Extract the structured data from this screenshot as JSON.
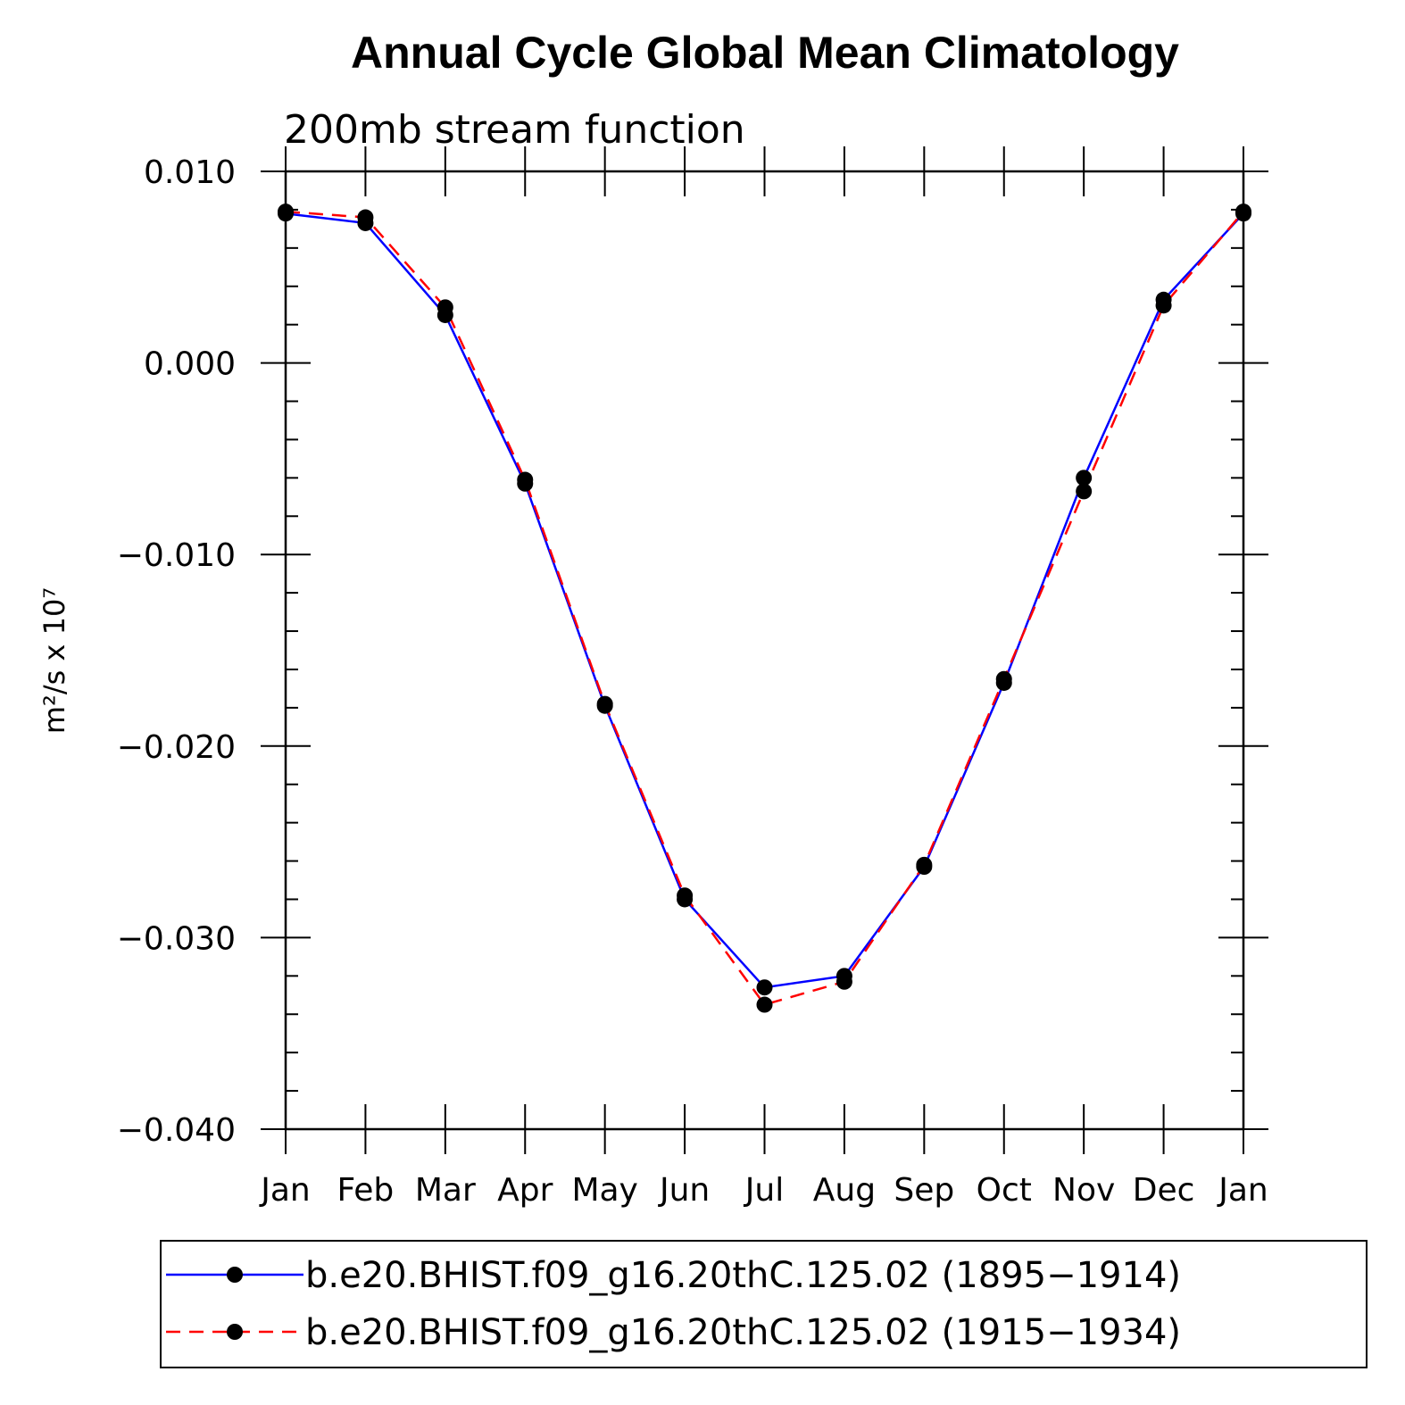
{
  "chart_data": {
    "type": "line",
    "title": "Annual Cycle Global Mean Climatology",
    "subtitle": "200mb stream function",
    "ylabel": "m²/s x 10⁷",
    "xlabel": "",
    "categories": [
      "Jan",
      "Feb",
      "Mar",
      "Apr",
      "May",
      "Jun",
      "Jul",
      "Aug",
      "Sep",
      "Oct",
      "Nov",
      "Dec",
      "Jan"
    ],
    "ylim": [
      -0.04,
      0.01
    ],
    "yticks": [
      0.01,
      0.0,
      -0.01,
      -0.02,
      -0.03,
      -0.04
    ],
    "ytick_labels": [
      "0.010",
      "0.000",
      "−0.010",
      "−0.020",
      "−0.030",
      "−0.040"
    ],
    "grid": false,
    "legend_position": "bottom",
    "series": [
      {
        "name": "b.e20.BHIST.f09_g16.20thC.125.02 (1895−1914)",
        "color": "#0000ff",
        "dash": "solid",
        "marker": "filled-circle",
        "values": [
          0.0078,
          0.0073,
          0.0025,
          -0.0063,
          -0.0179,
          -0.028,
          -0.0326,
          -0.032,
          -0.0263,
          -0.0167,
          -0.006,
          0.0033,
          0.0078
        ]
      },
      {
        "name": "b.e20.BHIST.f09_g16.20thC.125.02 (1915−1934)",
        "color": "#ff0000",
        "dash": "dashed",
        "marker": "filled-circle",
        "values": [
          0.0079,
          0.0076,
          0.0029,
          -0.0061,
          -0.0178,
          -0.0278,
          -0.0335,
          -0.0323,
          -0.0262,
          -0.0165,
          -0.0067,
          0.003,
          0.0079
        ]
      }
    ]
  }
}
